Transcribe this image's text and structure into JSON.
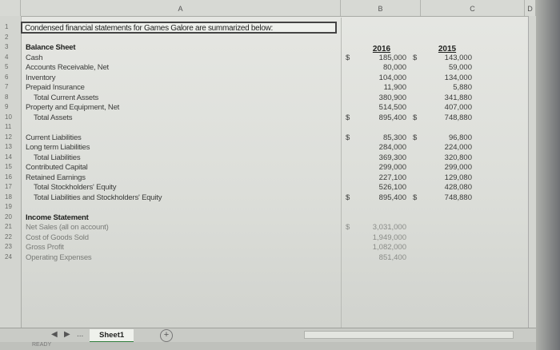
{
  "columns": [
    "A",
    "B",
    "C",
    "D"
  ],
  "title": "Condensed financial statements for Games Galore are summarized below:",
  "headers": {
    "y2016": "2016",
    "y2015": "2015"
  },
  "currency": "$",
  "rows": [
    {
      "n": "1",
      "label": "",
      "style": ""
    },
    {
      "n": "2",
      "label": "",
      "style": ""
    },
    {
      "n": "3",
      "label": "Balance Sheet",
      "style": "bold"
    },
    {
      "n": "4",
      "label": "Cash",
      "style": "",
      "a": "185,000",
      "b": "143,000",
      "curA": "$",
      "curB": "$"
    },
    {
      "n": "5",
      "label": "Accounts Receivable, Net",
      "style": "",
      "a": "80,000",
      "b": "59,000"
    },
    {
      "n": "6",
      "label": "Inventory",
      "style": "",
      "a": "104,000",
      "b": "134,000"
    },
    {
      "n": "7",
      "label": "Prepaid Insurance",
      "style": "",
      "a": "11,900",
      "b": "5,880"
    },
    {
      "n": "8",
      "label": "Total Current Assets",
      "style": "ind1",
      "a": "380,900",
      "b": "341,880"
    },
    {
      "n": "9",
      "label": "Property and Equipment, Net",
      "style": "",
      "a": "514,500",
      "b": "407,000"
    },
    {
      "n": "10",
      "label": "Total Assets",
      "style": "ind1",
      "a": "895,400",
      "b": "748,880",
      "curA": "$",
      "curB": "$"
    },
    {
      "n": "11",
      "label": "",
      "style": ""
    },
    {
      "n": "12",
      "label": "Current Liabilities",
      "style": "",
      "a": "85,300",
      "b": "96,800",
      "curA": "$",
      "curB": "$"
    },
    {
      "n": "13",
      "label": "Long term Liabilities",
      "style": "",
      "a": "284,000",
      "b": "224,000"
    },
    {
      "n": "14",
      "label": "Total Liabilities",
      "style": "ind1",
      "a": "369,300",
      "b": "320,800"
    },
    {
      "n": "15",
      "label": "Contributed Capital",
      "style": "",
      "a": "299,000",
      "b": "299,000"
    },
    {
      "n": "16",
      "label": "Retained Earnings",
      "style": "",
      "a": "227,100",
      "b": "129,080"
    },
    {
      "n": "17",
      "label": "Total Stockholders' Equity",
      "style": "ind1",
      "a": "526,100",
      "b": "428,080"
    },
    {
      "n": "18",
      "label": "Total Liabilities and Stockholders' Equity",
      "style": "ind1",
      "a": "895,400",
      "b": "748,880",
      "curA": "$",
      "curB": "$"
    },
    {
      "n": "19",
      "label": "",
      "style": ""
    },
    {
      "n": "20",
      "label": "Income Statement",
      "style": "bold"
    },
    {
      "n": "21",
      "label": "Net Sales (all on account)",
      "style": "faded",
      "a": "3,031,000",
      "curA": "$"
    },
    {
      "n": "22",
      "label": "Cost of Goods Sold",
      "style": "faded",
      "a": "1,949,000"
    },
    {
      "n": "23",
      "label": "Gross Profit",
      "style": "faded",
      "a": "1,082,000"
    },
    {
      "n": "24",
      "label": "Operating Expenses",
      "style": "faded",
      "a": "851,400"
    }
  ],
  "tabs": {
    "prev": "◀",
    "next": "▶",
    "more": "...",
    "sheet1": "Sheet1",
    "add": "+"
  },
  "status": "READY"
}
